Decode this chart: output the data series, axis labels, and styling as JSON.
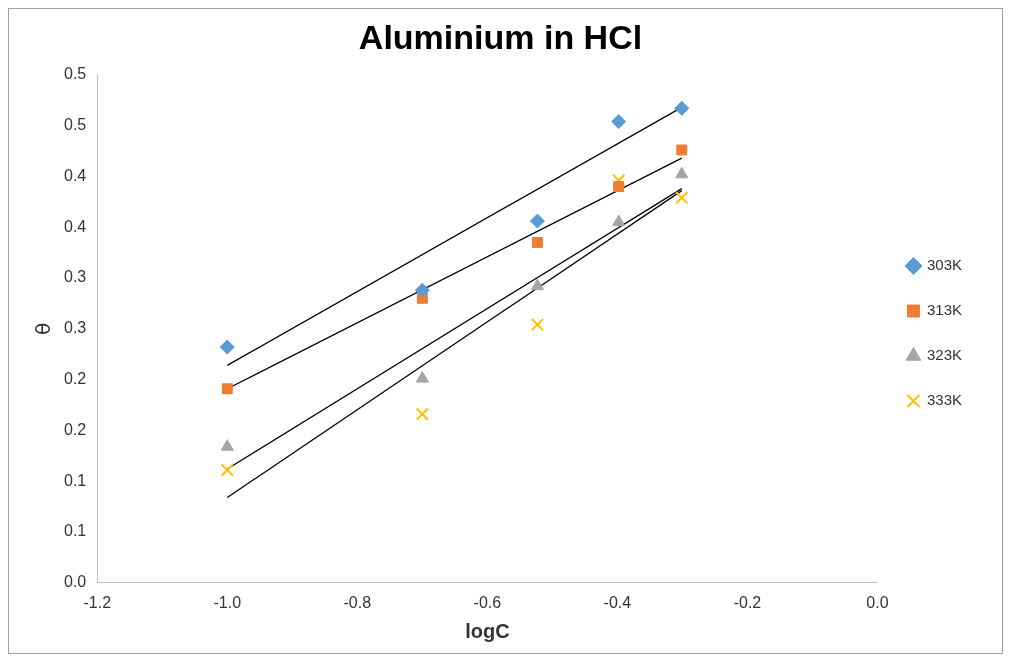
{
  "chart_data": {
    "type": "scatter",
    "title": "Aluminium in HCl",
    "xlabel": "logC",
    "ylabel": "θ",
    "xlim": [
      -1.2,
      0
    ],
    "xticks": [
      {
        "value": -1.2,
        "label": "-1.2"
      },
      {
        "value": -1,
        "label": "-1.0"
      },
      {
        "value": -0.8,
        "label": "-0.8"
      },
      {
        "value": -0.6,
        "label": "-0.6"
      },
      {
        "value": -0.4,
        "label": "-0.4"
      },
      {
        "value": -0.2,
        "label": "-0.2"
      },
      {
        "value": 0,
        "label": "0.0"
      }
    ],
    "ylim": [
      0,
      0.5
    ],
    "yticks": [
      {
        "value": 0,
        "label": "0.0"
      },
      {
        "value": 0.05,
        "label": "0.1"
      },
      {
        "value": 0.1,
        "label": "0.1"
      },
      {
        "value": 0.15,
        "label": "0.2"
      },
      {
        "value": 0.2,
        "label": "0.2"
      },
      {
        "value": 0.25,
        "label": "0.3"
      },
      {
        "value": 0.3,
        "label": "0.3"
      },
      {
        "value": 0.35,
        "label": "0.4"
      },
      {
        "value": 0.4,
        "label": "0.4"
      },
      {
        "value": 0.45,
        "label": "0.5"
      },
      {
        "value": 0.5,
        "label": "0.5"
      }
    ],
    "grid": false,
    "legend": "right",
    "series": [
      {
        "name": "303K",
        "type": "scatter",
        "marker": "diamond",
        "color": "#5b9bd5",
        "x": [
          -1,
          -0.7,
          -0.523,
          -0.398,
          -0.301
        ],
        "values": [
          0.232,
          0.288,
          0.356,
          0.454,
          0.467
        ]
      },
      {
        "name": "313K",
        "type": "scatter",
        "marker": "square",
        "color": "#ed7d31",
        "x": [
          -1,
          -0.7,
          -0.523,
          -0.398,
          -0.301
        ],
        "values": [
          0.191,
          0.28,
          0.335,
          0.39,
          0.426
        ]
      },
      {
        "name": "323K",
        "type": "scatter",
        "marker": "triangle",
        "color": "#a5a5a5",
        "x": [
          -1,
          -0.7,
          -0.523,
          -0.398,
          -0.301
        ],
        "values": [
          0.134,
          0.201,
          0.292,
          0.355,
          0.402
        ]
      },
      {
        "name": "333K",
        "type": "scatter",
        "marker": "cross",
        "color": "#ffc000",
        "x": [
          -1,
          -0.7,
          -0.523,
          -0.398,
          -0.301
        ],
        "values": [
          0.111,
          0.166,
          0.254,
          0.396,
          0.379
        ]
      },
      {
        "type": "line",
        "color": "#000000",
        "x": [
          -1,
          -0.301
        ],
        "values": [
          0.214,
          0.468
        ]
      },
      {
        "type": "line",
        "color": "#000000",
        "x": [
          -1,
          -0.301
        ],
        "values": [
          0.191,
          0.418
        ]
      },
      {
        "type": "line",
        "color": "#000000",
        "x": [
          -1,
          -0.301
        ],
        "values": [
          0.112,
          0.388
        ]
      },
      {
        "type": "line",
        "color": "#000000",
        "x": [
          -1,
          -0.301
        ],
        "values": [
          0.084,
          0.386
        ]
      }
    ]
  }
}
